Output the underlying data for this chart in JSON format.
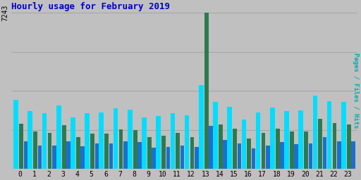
{
  "title": "Hourly usage for February 2019",
  "ylabel": "Pages / Files / Hits",
  "hours": [
    0,
    1,
    2,
    3,
    4,
    5,
    6,
    7,
    8,
    9,
    10,
    11,
    12,
    13,
    14,
    15,
    16,
    17,
    18,
    19,
    20,
    21,
    22,
    23
  ],
  "hits": [
    3200,
    2700,
    2600,
    2950,
    2400,
    2600,
    2620,
    2820,
    2750,
    2380,
    2450,
    2600,
    2480,
    3900,
    3100,
    2870,
    2280,
    2620,
    2860,
    2680,
    2720,
    3400,
    3150,
    3100
  ],
  "pages": [
    2100,
    1750,
    1680,
    2020,
    1480,
    1640,
    1640,
    1840,
    1800,
    1480,
    1560,
    1660,
    1490,
    7243,
    2080,
    1880,
    1400,
    1680,
    1880,
    1740,
    1750,
    2340,
    2140,
    2080
  ],
  "files": [
    1300,
    1100,
    1080,
    1300,
    1050,
    1180,
    1180,
    1280,
    1260,
    1000,
    1040,
    1080,
    1020,
    2000,
    1360,
    1200,
    950,
    1100,
    1260,
    1160,
    1180,
    1480,
    1300,
    1280
  ],
  "color_hits": "#00ddff",
  "color_pages": "#2e7a50",
  "color_files": "#1c6fcc",
  "bg_color": "#c0c0c0",
  "plot_bg": "#c0c0c0",
  "title_color": "#0000cc",
  "ylabel_color": "#00aaaa",
  "ymax": 7243,
  "bw_hits": 0.33,
  "bw_pages": 0.28,
  "bw_files": 0.28,
  "title_fontsize": 9,
  "tick_fontsize": 7
}
